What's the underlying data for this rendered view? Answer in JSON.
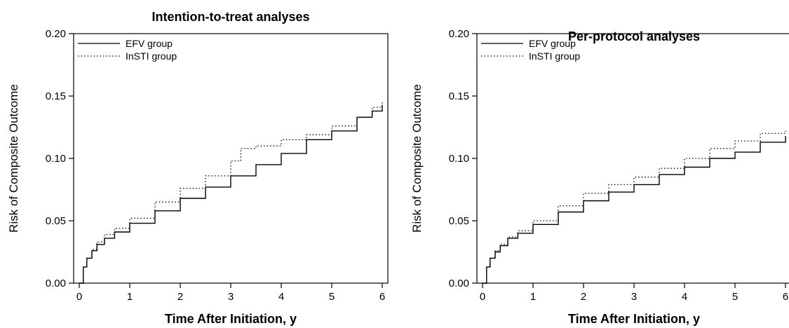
{
  "chart_data": [
    {
      "type": "line",
      "title": "Intention-to-treat analyses",
      "xlabel": "Time After Initiation, y",
      "ylabel": "Risk of Composite Outcome",
      "xlim": [
        0,
        6
      ],
      "ylim": [
        0,
        0.2
      ],
      "xticks": [
        "0",
        "1",
        "2",
        "3",
        "4",
        "5",
        "6"
      ],
      "yticks": [
        "0.00",
        "0.05",
        "0.10",
        "0.15",
        "0.20"
      ],
      "legend_position": "top-left",
      "grid": false,
      "series": [
        {
          "name": "EFV group",
          "style": "solid",
          "x": [
            0,
            0.08,
            0.15,
            0.25,
            0.35,
            0.5,
            0.7,
            1.0,
            1.5,
            2.0,
            2.5,
            3.0,
            3.5,
            4.0,
            4.5,
            5.0,
            5.5,
            5.8,
            6.0
          ],
          "y": [
            0,
            0.013,
            0.02,
            0.026,
            0.031,
            0.036,
            0.041,
            0.048,
            0.058,
            0.068,
            0.077,
            0.086,
            0.095,
            0.104,
            0.115,
            0.122,
            0.133,
            0.138,
            0.143
          ]
        },
        {
          "name": "InSTI group",
          "style": "dotted",
          "x": [
            0,
            0.08,
            0.15,
            0.25,
            0.35,
            0.5,
            0.7,
            1.0,
            1.5,
            2.0,
            2.5,
            3.0,
            3.2,
            3.5,
            4.0,
            4.5,
            5.0,
            5.5,
            5.8,
            6.0
          ],
          "y": [
            0,
            0.013,
            0.02,
            0.027,
            0.033,
            0.039,
            0.044,
            0.052,
            0.065,
            0.076,
            0.086,
            0.098,
            0.108,
            0.11,
            0.115,
            0.119,
            0.126,
            0.133,
            0.141,
            0.146
          ]
        }
      ]
    },
    {
      "type": "line",
      "title": "Per-protocol analyses",
      "xlabel": "Time After Initiation, y",
      "ylabel": "Risk of Composite Outcome",
      "xlim": [
        0,
        6
      ],
      "ylim": [
        0,
        0.2
      ],
      "xticks": [
        "0",
        "1",
        "2",
        "3",
        "4",
        "5",
        "6"
      ],
      "yticks": [
        "0.00",
        "0.05",
        "0.10",
        "0.15",
        "0.20"
      ],
      "legend_position": "top-left",
      "grid": false,
      "series": [
        {
          "name": "EFV group",
          "style": "solid",
          "x": [
            0,
            0.08,
            0.15,
            0.25,
            0.35,
            0.5,
            0.7,
            1.0,
            1.5,
            2.0,
            2.5,
            3.0,
            3.5,
            4.0,
            4.5,
            5.0,
            5.5,
            6.0
          ],
          "y": [
            0,
            0.013,
            0.02,
            0.025,
            0.03,
            0.036,
            0.04,
            0.047,
            0.057,
            0.066,
            0.073,
            0.079,
            0.087,
            0.093,
            0.1,
            0.105,
            0.113,
            0.118
          ]
        },
        {
          "name": "InSTI group",
          "style": "dotted",
          "x": [
            0,
            0.08,
            0.15,
            0.25,
            0.35,
            0.5,
            0.7,
            1.0,
            1.5,
            2.0,
            2.5,
            3.0,
            3.5,
            4.0,
            4.5,
            5.0,
            5.5,
            6.0
          ],
          "y": [
            0,
            0.013,
            0.02,
            0.026,
            0.031,
            0.037,
            0.042,
            0.05,
            0.062,
            0.072,
            0.079,
            0.085,
            0.092,
            0.1,
            0.108,
            0.114,
            0.12,
            0.122
          ]
        }
      ]
    }
  ]
}
